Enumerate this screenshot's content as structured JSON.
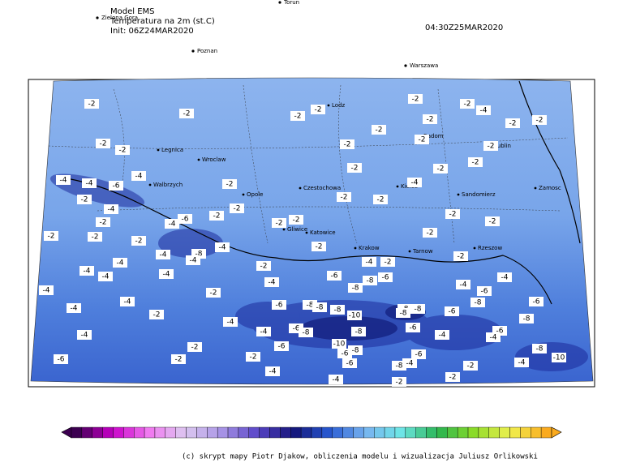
{
  "header": {
    "model": "Model EMS",
    "variable": "Temperatura na 2m (st.C)",
    "init": "Init: 06Z24MAR2020",
    "valid": "04:30Z25MAR2020"
  },
  "outer_cities": [
    "Torun",
    "Zielona Gora",
    "Poznan",
    "Warszawa"
  ],
  "map_cities": [
    "Legnica",
    "Walbrzych",
    "Wroclaw",
    "Opole",
    "Gliwice",
    "Katowice",
    "Czestochowa",
    "Krakow",
    "Tarnow",
    "Kielce",
    "Radom",
    "Lublin",
    "Zamosc",
    "Rzeszow",
    "Sandomierz",
    "Lodz"
  ],
  "contour_labels": [
    "-2",
    "-2",
    "-2",
    "-2",
    "-2",
    "-2",
    "-4",
    "-2",
    "-2",
    "-2",
    "-2",
    "-2",
    "-2",
    "-2",
    "-2",
    "-2",
    "-2",
    "-2",
    "-2",
    "-4",
    "-4",
    "-6",
    "-4",
    "-2",
    "-4",
    "-2",
    "-2",
    "-2",
    "-4",
    "-2",
    "-2",
    "-6",
    "-4",
    "-2",
    "-2",
    "-2",
    "-2",
    "-2",
    "-2",
    "-2",
    "-2",
    "-2",
    "-2",
    "-4",
    "-8",
    "-4",
    "-4",
    "-2",
    "-4",
    "-2",
    "-2",
    "-4",
    "-4",
    "-4",
    "-4",
    "-6",
    "-6",
    "-8",
    "-4",
    "-4",
    "-4",
    "-8",
    "-4",
    "-6",
    "-2",
    "-4",
    "-6",
    "-8",
    "-8",
    "-8",
    "-8",
    "-8",
    "-6",
    "-8",
    "-6",
    "-4",
    "-2",
    "-10",
    "-8",
    "-8",
    "-4",
    "-6",
    "-8",
    "-4",
    "-8",
    "-6",
    "-4",
    "-6",
    "-4",
    "-4",
    "-10",
    "-6",
    "-2",
    "-8",
    "-6",
    "-6",
    "-6",
    "-2",
    "-2",
    "-8",
    "-10",
    "-6",
    "-8",
    "-4",
    "-2",
    "-4",
    "-4",
    "-4",
    "-2",
    "-2"
  ],
  "credit": "(c) skrypt mapy Piotr Djakow, obliczenia modelu i wizualizacja Juliusz Orlikowski"
}
